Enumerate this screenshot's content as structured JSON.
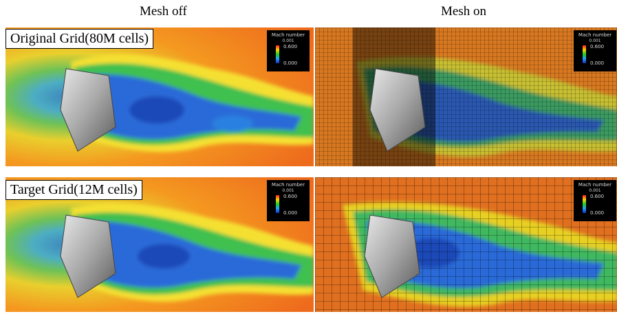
{
  "columns": {
    "left": "Mesh off",
    "right": "Mesh on"
  },
  "rows": [
    {
      "label": "Original Grid(80M cells)"
    },
    {
      "label": "Target Grid(12M cells)"
    }
  ],
  "legend": {
    "title": "Mach number",
    "sub": "0.001",
    "max": "0.600",
    "min": "0.000"
  },
  "colors": {
    "freestream": "#f08a20",
    "wake_blue": "#2a6ad8",
    "wake_green": "#3fc050",
    "capsule": "#a0a0a0"
  }
}
